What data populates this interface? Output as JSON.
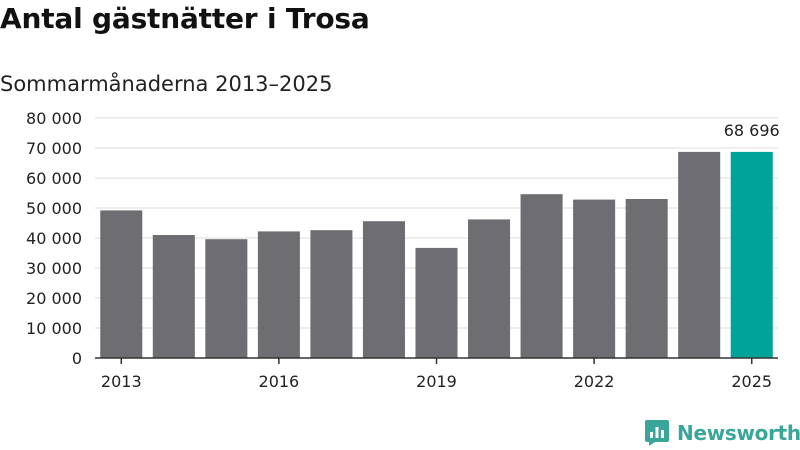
{
  "chart_data": {
    "type": "bar",
    "title": "Antal gästnätter i Trosa",
    "subtitle": "Sommarmånaderna 2013–2025",
    "categories": [
      "2013",
      "2014",
      "2015",
      "2016",
      "2017",
      "2018",
      "2019",
      "2020",
      "2021",
      "2022",
      "2023",
      "2024",
      "2025"
    ],
    "x_tick_labels": [
      "2013",
      "2016",
      "2019",
      "2022",
      "2025"
    ],
    "values": [
      49200,
      41000,
      39600,
      42200,
      42600,
      45600,
      36700,
      46200,
      54600,
      52800,
      53000,
      68700,
      68696
    ],
    "y_ticks": [
      0,
      10000,
      20000,
      30000,
      40000,
      50000,
      60000,
      70000,
      80000
    ],
    "y_tick_labels": [
      "0",
      "10 000",
      "20 000",
      "30 000",
      "40 000",
      "50 000",
      "60 000",
      "70 000",
      "80 000"
    ],
    "ylim": [
      0,
      80000
    ],
    "grid": true,
    "highlight": {
      "category": "2025",
      "label": "68 696"
    },
    "colors": {
      "bar": "#6d6d72",
      "highlight": "#00a39a",
      "grid": "#dddddd",
      "axis": "#333333"
    }
  },
  "brand": {
    "name": "Newsworthy",
    "logo_icon": "bar-chart-speech-bubble-icon",
    "color": "#3aa69a"
  }
}
